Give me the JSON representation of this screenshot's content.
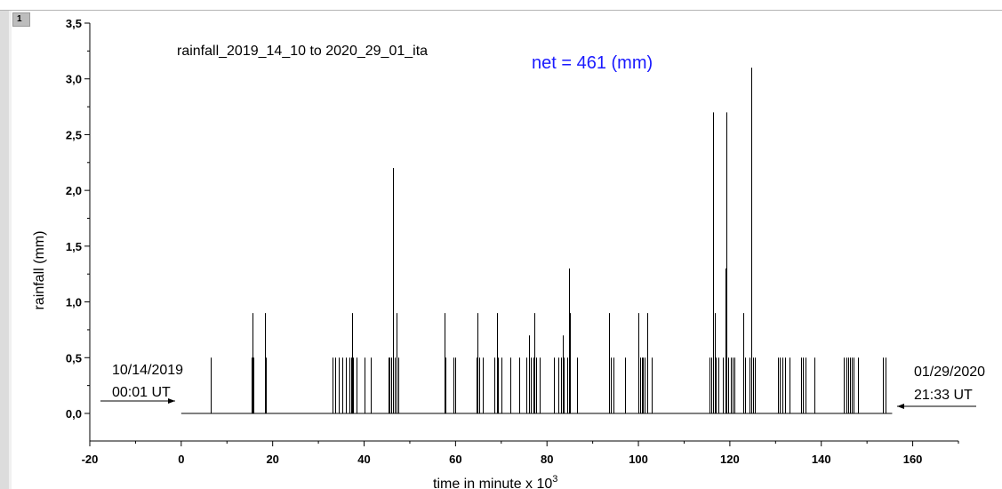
{
  "layer_tab": "1",
  "chart_data": {
    "type": "bar",
    "title": "rainfall_2019_14_10 to 2020_29_01_ita",
    "ylabel": "rainfall (mm)",
    "xlabel_main": "time in minute x 10",
    "xlabel_sup": "3",
    "xlim": [
      -20,
      170
    ],
    "ylim": [
      0.0,
      3.5
    ],
    "x_ticks": [
      "-20",
      "0",
      "20",
      "40",
      "60",
      "80",
      "100",
      "120",
      "140",
      "160"
    ],
    "x_tick_values": [
      -20,
      0,
      20,
      40,
      60,
      80,
      100,
      120,
      140,
      160
    ],
    "y_ticks": [
      "0,0",
      "0,5",
      "1,0",
      "1,5",
      "2,0",
      "2,5",
      "3,0",
      "3,5"
    ],
    "y_tick_values": [
      0.0,
      0.5,
      1.0,
      1.5,
      2.0,
      2.5,
      3.0,
      3.5
    ],
    "series_color": "#000000",
    "net_color": "#1a1aff",
    "baseline": [
      0,
      155.5
    ],
    "events": [
      [
        6.5,
        0.5
      ],
      [
        15.3,
        0.5
      ],
      [
        15.5,
        0.9
      ],
      [
        15.7,
        0.5
      ],
      [
        18.3,
        0.9
      ],
      [
        18.5,
        0.5
      ],
      [
        33.0,
        0.5
      ],
      [
        33.7,
        0.5
      ],
      [
        34.5,
        0.5
      ],
      [
        35.3,
        0.5
      ],
      [
        36.0,
        0.5
      ],
      [
        36.8,
        0.5
      ],
      [
        37.1,
        0.5
      ],
      [
        37.3,
        0.9
      ],
      [
        37.6,
        0.5
      ],
      [
        38.3,
        0.5
      ],
      [
        40.0,
        0.5
      ],
      [
        41.5,
        0.5
      ],
      [
        45.3,
        0.5
      ],
      [
        45.6,
        0.5
      ],
      [
        46.0,
        0.5
      ],
      [
        46.4,
        2.2
      ],
      [
        46.8,
        0.5
      ],
      [
        47.1,
        0.9
      ],
      [
        47.4,
        0.5
      ],
      [
        57.5,
        0.9
      ],
      [
        57.8,
        0.5
      ],
      [
        59.5,
        0.5
      ],
      [
        60.0,
        0.5
      ],
      [
        64.5,
        0.5
      ],
      [
        64.8,
        0.9
      ],
      [
        65.2,
        0.5
      ],
      [
        66.0,
        0.5
      ],
      [
        68.5,
        0.5
      ],
      [
        69.0,
        0.9
      ],
      [
        69.3,
        0.5
      ],
      [
        70.0,
        0.5
      ],
      [
        72.0,
        0.5
      ],
      [
        74.0,
        0.5
      ],
      [
        75.5,
        0.5
      ],
      [
        76.0,
        0.7
      ],
      [
        76.5,
        0.5
      ],
      [
        77.0,
        0.5
      ],
      [
        77.3,
        0.9
      ],
      [
        77.7,
        0.5
      ],
      [
        78.5,
        0.5
      ],
      [
        81.5,
        0.5
      ],
      [
        82.5,
        0.5
      ],
      [
        83.0,
        0.5
      ],
      [
        83.4,
        0.7
      ],
      [
        83.7,
        0.5
      ],
      [
        84.5,
        0.5
      ],
      [
        84.8,
        1.3
      ],
      [
        85.0,
        0.9
      ],
      [
        86.5,
        0.5
      ],
      [
        93.5,
        0.9
      ],
      [
        94.0,
        0.5
      ],
      [
        94.5,
        0.5
      ],
      [
        97.0,
        0.5
      ],
      [
        100.0,
        0.9
      ],
      [
        100.3,
        0.5
      ],
      [
        100.7,
        0.5
      ],
      [
        101.0,
        0.5
      ],
      [
        101.4,
        0.5
      ],
      [
        102.0,
        0.9
      ],
      [
        103.0,
        0.5
      ],
      [
        115.5,
        0.5
      ],
      [
        116.0,
        0.5
      ],
      [
        116.4,
        2.7
      ],
      [
        116.7,
        0.9
      ],
      [
        117.0,
        0.5
      ],
      [
        117.5,
        0.5
      ],
      [
        118.5,
        0.5
      ],
      [
        119.0,
        1.3
      ],
      [
        119.3,
        2.7
      ],
      [
        119.6,
        0.5
      ],
      [
        120.2,
        0.5
      ],
      [
        120.7,
        0.5
      ],
      [
        121.0,
        0.5
      ],
      [
        123.0,
        0.9
      ],
      [
        123.3,
        0.5
      ],
      [
        124.3,
        0.5
      ],
      [
        124.7,
        3.1
      ],
      [
        125.0,
        0.5
      ],
      [
        125.5,
        0.5
      ],
      [
        130.5,
        0.5
      ],
      [
        131.0,
        0.5
      ],
      [
        131.5,
        0.5
      ],
      [
        132.0,
        0.5
      ],
      [
        133.0,
        0.5
      ],
      [
        135.5,
        0.5
      ],
      [
        136.0,
        0.5
      ],
      [
        136.5,
        0.5
      ],
      [
        138.5,
        0.5
      ],
      [
        145.0,
        0.5
      ],
      [
        145.5,
        0.5
      ],
      [
        145.8,
        0.5
      ],
      [
        146.2,
        0.5
      ],
      [
        146.6,
        0.5
      ],
      [
        147.0,
        0.5
      ],
      [
        148.0,
        0.5
      ],
      [
        153.5,
        0.5
      ],
      [
        154.0,
        0.5
      ]
    ],
    "annotations": {
      "net": "net = 461 (mm)",
      "start_date": "10/14/2019",
      "start_time": "00:01 UT",
      "end_date": "01/29/2020",
      "end_time": "21:33 UT"
    }
  }
}
